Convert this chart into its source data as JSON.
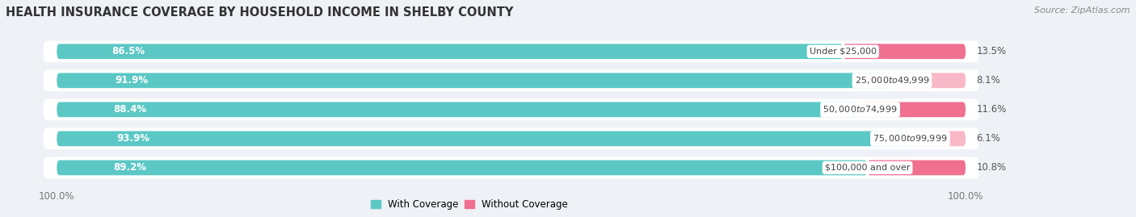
{
  "title": "HEALTH INSURANCE COVERAGE BY HOUSEHOLD INCOME IN SHELBY COUNTY",
  "source": "Source: ZipAtlas.com",
  "categories": [
    "Under $25,000",
    "$25,000 to $49,999",
    "$50,000 to $74,999",
    "$75,000 to $99,999",
    "$100,000 and over"
  ],
  "with_coverage": [
    86.5,
    91.9,
    88.4,
    93.9,
    89.2
  ],
  "without_coverage": [
    13.5,
    8.1,
    11.6,
    6.1,
    10.8
  ],
  "color_with": "#5bc8c5",
  "color_without": "#f07090",
  "color_without_light": "#f8b8c8",
  "bar_height": 0.52,
  "bg_color": "#eef1f5",
  "row_bg_color": "#ffffff",
  "title_fontsize": 10.5,
  "label_fontsize": 8.5,
  "pct_fontsize": 8.5,
  "source_fontsize": 8,
  "xlim_left": -5,
  "xlim_right": 115,
  "total_bar_width": 100
}
